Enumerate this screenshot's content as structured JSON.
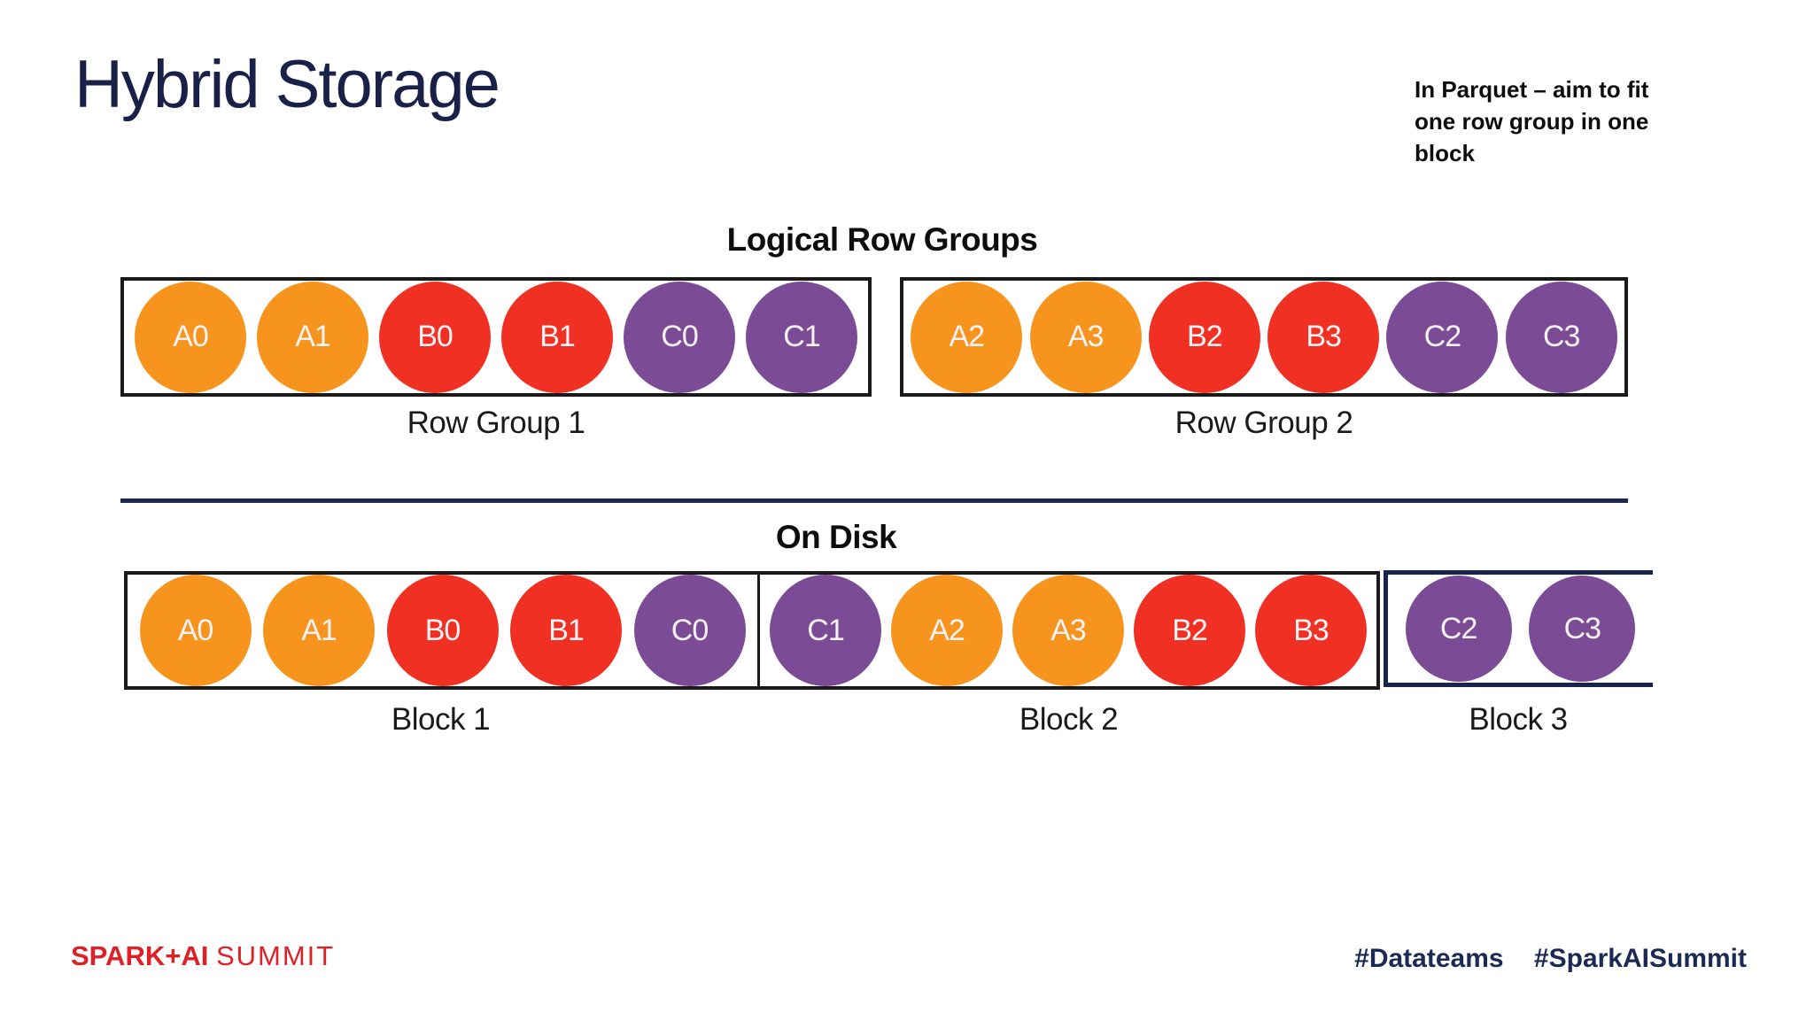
{
  "slide": {
    "title": "Hybrid Storage",
    "note": "In Parquet – aim to fit one row group in one block"
  },
  "colors": {
    "orange": "#F7941E",
    "red": "#F13024",
    "purple": "#7C4B96",
    "navy": "#1B2A55",
    "border_black": "#1a1a1a",
    "border_navy": "#17244E",
    "brand_red": "#DC2127",
    "title_navy": "#1A2148"
  },
  "logical": {
    "heading": "Logical Row Groups",
    "groups": [
      {
        "label": "Row Group 1",
        "cells": [
          {
            "id": "A0",
            "color": "orange"
          },
          {
            "id": "A1",
            "color": "orange"
          },
          {
            "id": "B0",
            "color": "red"
          },
          {
            "id": "B1",
            "color": "red"
          },
          {
            "id": "C0",
            "color": "purple"
          },
          {
            "id": "C1",
            "color": "purple"
          }
        ]
      },
      {
        "label": "Row Group 2",
        "cells": [
          {
            "id": "A2",
            "color": "orange"
          },
          {
            "id": "A3",
            "color": "orange"
          },
          {
            "id": "B2",
            "color": "red"
          },
          {
            "id": "B3",
            "color": "red"
          },
          {
            "id": "C2",
            "color": "purple"
          },
          {
            "id": "C3",
            "color": "purple"
          }
        ]
      }
    ]
  },
  "disk": {
    "heading": "On Disk",
    "blocks": [
      {
        "label": "Block 1",
        "cells": [
          {
            "id": "A0",
            "color": "orange"
          },
          {
            "id": "A1",
            "color": "orange"
          },
          {
            "id": "B0",
            "color": "red"
          },
          {
            "id": "B1",
            "color": "red"
          },
          {
            "id": "C0",
            "color": "purple"
          }
        ]
      },
      {
        "label": "Block 2",
        "cells": [
          {
            "id": "C1",
            "color": "purple"
          },
          {
            "id": "A2",
            "color": "orange"
          },
          {
            "id": "A3",
            "color": "orange"
          },
          {
            "id": "B2",
            "color": "red"
          },
          {
            "id": "B3",
            "color": "red"
          }
        ]
      },
      {
        "label": "Block 3",
        "cells": [
          {
            "id": "C2",
            "color": "purple"
          },
          {
            "id": "C3",
            "color": "purple"
          }
        ]
      }
    ]
  },
  "footer": {
    "brand_bold": "SPARK+AI",
    "brand_light": "SUMMIT",
    "hashtag_1": "#Datateams",
    "hashtag_2": "#SparkAISummit"
  }
}
